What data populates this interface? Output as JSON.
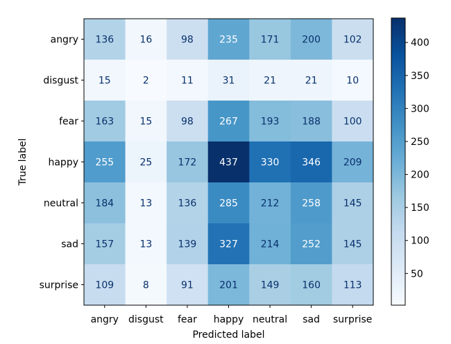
{
  "chart_data": {
    "type": "heatmap",
    "title": "",
    "xlabel": "Predicted label",
    "ylabel": "True label",
    "x_categories": [
      "angry",
      "disgust",
      "fear",
      "happy",
      "neutral",
      "sad",
      "surprise"
    ],
    "y_categories": [
      "angry",
      "disgust",
      "fear",
      "happy",
      "neutral",
      "sad",
      "surprise"
    ],
    "values": [
      [
        136,
        16,
        98,
        235,
        171,
        200,
        102
      ],
      [
        15,
        2,
        11,
        31,
        21,
        21,
        10
      ],
      [
        163,
        15,
        98,
        267,
        193,
        188,
        100
      ],
      [
        255,
        25,
        172,
        437,
        330,
        346,
        209
      ],
      [
        184,
        13,
        136,
        285,
        212,
        258,
        145
      ],
      [
        157,
        13,
        139,
        327,
        214,
        252,
        145
      ],
      [
        109,
        8,
        91,
        201,
        149,
        160,
        113
      ]
    ],
    "colormap": "Blues",
    "colorbar": {
      "min": 2,
      "max": 437,
      "ticks": [
        50,
        100,
        150,
        200,
        250,
        300,
        350,
        400
      ]
    },
    "text_color_light": "#ffffff",
    "text_color_dark": "#08306b"
  }
}
